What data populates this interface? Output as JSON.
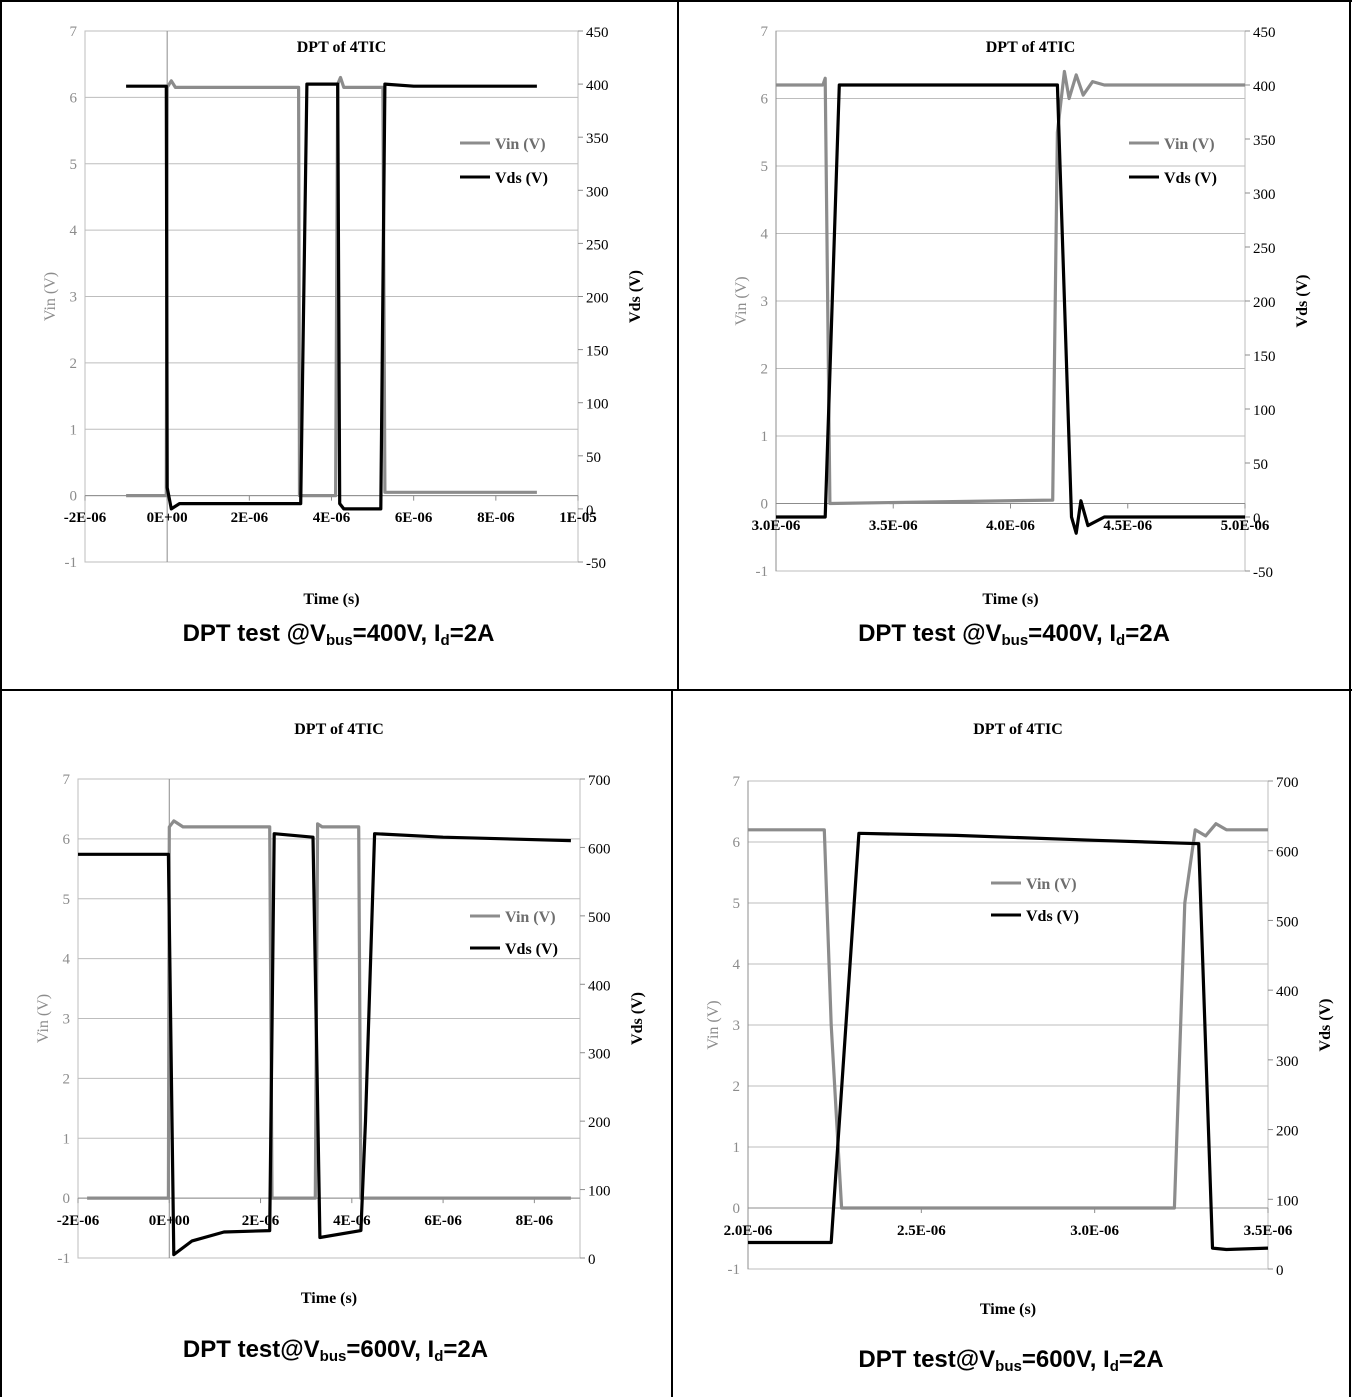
{
  "chart_data": [
    {
      "type": "line",
      "title": "DPT of 4TIC",
      "xlabel": "Time (s)",
      "ylabel_left": "Vin (V)",
      "ylabel_right": "Vds (V)",
      "x_ticks": [
        "-2E-06",
        "0E+00",
        "2E-06",
        "4E-06",
        "6E-06",
        "8E-06",
        "1E-05"
      ],
      "x_tick_values": [
        -2e-06,
        0,
        2e-06,
        4e-06,
        6e-06,
        8e-06,
        1e-05
      ],
      "xlim": [
        -2e-06,
        1e-05
      ],
      "ylim_left": [
        -1,
        7
      ],
      "ylim_right": [
        -50,
        450
      ],
      "y_ticks_left": [
        "-1",
        "0",
        "1",
        "2",
        "3",
        "4",
        "5",
        "6",
        "7"
      ],
      "y_ticks_right": [
        "-50",
        "0",
        "50",
        "100",
        "150",
        "200",
        "250",
        "300",
        "350",
        "400",
        "450"
      ],
      "grid": true,
      "legend_position": "upper-right",
      "series": [
        {
          "name": "Vin (V)",
          "axis": "left",
          "color": "#8c8c8c",
          "x": [
            -1e-06,
            -1e-07,
            -2e-08,
            0,
            1e-07,
            2e-07,
            3.2e-06,
            3.22e-06,
            3.3e-06,
            3.4e-06,
            4.1e-06,
            4.15e-06,
            4.22e-06,
            4.3e-06,
            5.25e-06,
            5.3e-06,
            9e-06
          ],
          "y": [
            0,
            0,
            0,
            6.15,
            6.25,
            6.15,
            6.15,
            0,
            0,
            0,
            0,
            6.2,
            6.3,
            6.15,
            6.15,
            0.05,
            0.05
          ]
        },
        {
          "name": "Vds (V)",
          "axis": "right",
          "color": "#000000",
          "x": [
            -1e-06,
            -2e-08,
            0,
            1e-07,
            3e-07,
            3.25e-06,
            3.4e-06,
            4.15e-06,
            4.2e-06,
            4.3e-06,
            5.2e-06,
            5.3e-06,
            6e-06,
            9e-06
          ],
          "y": [
            398,
            398,
            20,
            0,
            5,
            5,
            400,
            400,
            5,
            0,
            0,
            400,
            398,
            398
          ]
        }
      ]
    },
    {
      "type": "line",
      "title": "DPT of 4TIC",
      "xlabel": "Time (s)",
      "ylabel_left": "Vin (V)",
      "ylabel_right": "Vds (V)",
      "x_ticks": [
        "3.0E-06",
        "3.5E-06",
        "4.0E-06",
        "4.5E-06",
        "5.0E-06"
      ],
      "x_tick_values": [
        3e-06,
        3.5e-06,
        4e-06,
        4.5e-06,
        5e-06
      ],
      "xlim": [
        3e-06,
        5e-06
      ],
      "ylim_left": [
        -1,
        7
      ],
      "ylim_right": [
        -50,
        450
      ],
      "y_ticks_left": [
        "-1",
        "0",
        "1",
        "2",
        "3",
        "4",
        "5",
        "6",
        "7"
      ],
      "y_ticks_right": [
        "-50",
        "0",
        "50",
        "100",
        "150",
        "200",
        "250",
        "300",
        "350",
        "400",
        "450"
      ],
      "grid": true,
      "legend_position": "upper-right",
      "series": [
        {
          "name": "Vin (V)",
          "axis": "left",
          "color": "#8c8c8c",
          "x": [
            3e-06,
            3.2e-06,
            3.21e-06,
            3.23e-06,
            4.18e-06,
            4.2e-06,
            4.23e-06,
            4.25e-06,
            4.28e-06,
            4.31e-06,
            4.35e-06,
            4.4e-06,
            5e-06
          ],
          "y": [
            6.2,
            6.2,
            6.3,
            0,
            0.05,
            5.5,
            6.4,
            6.0,
            6.35,
            6.05,
            6.25,
            6.2,
            6.2
          ]
        },
        {
          "name": "Vds (V)",
          "axis": "right",
          "color": "#000000",
          "x": [
            3e-06,
            3.21e-06,
            3.27e-06,
            4.2e-06,
            4.26e-06,
            4.28e-06,
            4.3e-06,
            4.33e-06,
            4.4e-06,
            5e-06
          ],
          "y": [
            0,
            0,
            400,
            400,
            0,
            -15,
            15,
            -8,
            0,
            0
          ]
        }
      ]
    },
    {
      "type": "line",
      "title": "DPT of 4TIC",
      "xlabel": "Time (s)",
      "ylabel_left": "Vin (V)",
      "ylabel_right": "Vds (V)",
      "x_ticks": [
        "-2E-06",
        "0E+00",
        "2E-06",
        "4E-06",
        "6E-06",
        "8E-06"
      ],
      "x_tick_values": [
        -2e-06,
        0,
        2e-06,
        4e-06,
        6e-06,
        8e-06
      ],
      "xlim": [
        -2e-06,
        9e-06
      ],
      "ylim_left": [
        -1,
        7
      ],
      "ylim_right": [
        0,
        700
      ],
      "y_ticks_left": [
        "-1",
        "0",
        "1",
        "2",
        "3",
        "4",
        "5",
        "6",
        "7"
      ],
      "y_ticks_right": [
        "0",
        "100",
        "200",
        "300",
        "400",
        "500",
        "600",
        "700"
      ],
      "grid": true,
      "legend_position": "right",
      "series": [
        {
          "name": "Vin (V)",
          "axis": "left",
          "color": "#8c8c8c",
          "x": [
            -1.8e-06,
            -2e-08,
            0,
            1e-07,
            3e-07,
            2.2e-06,
            2.25e-06,
            3.2e-06,
            3.25e-06,
            3.35e-06,
            4.15e-06,
            4.2e-06,
            8.8e-06
          ],
          "y": [
            0,
            0,
            6.2,
            6.3,
            6.2,
            6.2,
            0,
            0,
            6.25,
            6.2,
            6.2,
            0,
            0
          ]
        },
        {
          "name": "Vds (V)",
          "axis": "right",
          "color": "#000000",
          "x": [
            -2e-06,
            -2e-08,
            1e-07,
            5e-07,
            1.2e-06,
            2.2e-06,
            2.3e-06,
            3.15e-06,
            3.3e-06,
            4.2e-06,
            4.3e-06,
            4.5e-06,
            6e-06,
            8.8e-06
          ],
          "y": [
            590,
            590,
            5,
            25,
            38,
            40,
            620,
            615,
            30,
            40,
            200,
            620,
            615,
            610
          ]
        }
      ]
    },
    {
      "type": "line",
      "title": "DPT of 4TIC",
      "xlabel": "Time (s)",
      "ylabel_left": "Vin (V)",
      "ylabel_right": "Vds (V)",
      "x_ticks": [
        "2.0E-06",
        "2.5E-06",
        "3.0E-06",
        "3.5E-06"
      ],
      "x_tick_values": [
        2e-06,
        2.5e-06,
        3e-06,
        3.5e-06
      ],
      "xlim": [
        2e-06,
        3.5e-06
      ],
      "ylim_left": [
        -1,
        7
      ],
      "ylim_right": [
        0,
        700
      ],
      "y_ticks_left": [
        "-1",
        "0",
        "1",
        "2",
        "3",
        "4",
        "5",
        "6",
        "7"
      ],
      "y_ticks_right": [
        "0",
        "100",
        "200",
        "300",
        "400",
        "500",
        "600",
        "700"
      ],
      "grid": true,
      "legend_position": "center",
      "series": [
        {
          "name": "Vin (V)",
          "axis": "left",
          "color": "#8c8c8c",
          "x": [
            2e-06,
            2.22e-06,
            2.24e-06,
            2.27e-06,
            3.23e-06,
            3.26e-06,
            3.29e-06,
            3.32e-06,
            3.35e-06,
            3.38e-06,
            3.5e-06
          ],
          "y": [
            6.2,
            6.2,
            3,
            0,
            0,
            5,
            6.2,
            6.1,
            6.3,
            6.2,
            6.2
          ]
        },
        {
          "name": "Vds (V)",
          "axis": "right",
          "color": "#000000",
          "x": [
            2e-06,
            2.24e-06,
            2.32e-06,
            2.6e-06,
            3e-06,
            3.3e-06,
            3.34e-06,
            3.38e-06,
            3.5e-06
          ],
          "y": [
            38,
            38,
            625,
            622,
            615,
            610,
            30,
            28,
            30
          ]
        }
      ]
    }
  ],
  "captions": [
    {
      "prefix": "DPT test @V",
      "sub1": "bus",
      "mid": "=400V, I",
      "sub2": "d",
      "suffix": "=2A"
    },
    {
      "prefix": "DPT test @V",
      "sub1": "bus",
      "mid": "=400V, I",
      "sub2": "d",
      "suffix": "=2A"
    },
    {
      "prefix": "DPT test@V",
      "sub1": "bus",
      "mid": "=600V, I",
      "sub2": "d",
      "suffix": "=2A"
    },
    {
      "prefix": "DPT test@V",
      "sub1": "bus",
      "mid": "=600V, I",
      "sub2": "d",
      "suffix": "=2A"
    }
  ]
}
